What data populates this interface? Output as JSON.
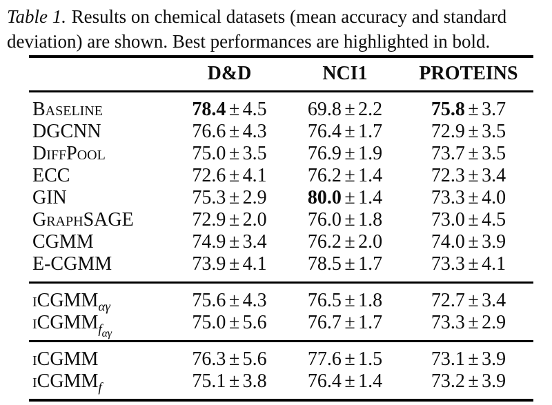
{
  "caption": {
    "label": "Table 1.",
    "line1": "Results on chemical datasets (mean accuracy and standard",
    "line2": "deviation) are shown. Best performances are highlighted in bold."
  },
  "table": {
    "pm": "±",
    "columns": [
      "",
      "D&D",
      "NCI1",
      "PROTEINS"
    ],
    "groups": [
      {
        "rows": [
          {
            "model": {
              "name": "Baseline",
              "sub": "",
              "subsub": ""
            },
            "cells": [
              {
                "mean": "78.4",
                "std": "4.5",
                "bold": true
              },
              {
                "mean": "69.8",
                "std": "2.2",
                "bold": false
              },
              {
                "mean": "75.8",
                "std": "3.7",
                "bold": true
              }
            ]
          },
          {
            "model": {
              "name": "DGCNN",
              "sub": "",
              "subsub": ""
            },
            "cells": [
              {
                "mean": "76.6",
                "std": "4.3",
                "bold": false
              },
              {
                "mean": "76.4",
                "std": "1.7",
                "bold": false
              },
              {
                "mean": "72.9",
                "std": "3.5",
                "bold": false
              }
            ]
          },
          {
            "model": {
              "name": "DiffPool",
              "sub": "",
              "subsub": ""
            },
            "cells": [
              {
                "mean": "75.0",
                "std": "3.5",
                "bold": false
              },
              {
                "mean": "76.9",
                "std": "1.9",
                "bold": false
              },
              {
                "mean": "73.7",
                "std": "3.5",
                "bold": false
              }
            ]
          },
          {
            "model": {
              "name": "ECC",
              "sub": "",
              "subsub": ""
            },
            "cells": [
              {
                "mean": "72.6",
                "std": "4.1",
                "bold": false
              },
              {
                "mean": "76.2",
                "std": "1.4",
                "bold": false
              },
              {
                "mean": "72.3",
                "std": "3.4",
                "bold": false
              }
            ]
          },
          {
            "model": {
              "name": "GIN",
              "sub": "",
              "subsub": ""
            },
            "cells": [
              {
                "mean": "75.3",
                "std": "2.9",
                "bold": false
              },
              {
                "mean": "80.0",
                "std": "1.4",
                "bold": true
              },
              {
                "mean": "73.3",
                "std": "4.0",
                "bold": false
              }
            ]
          },
          {
            "model": {
              "name": "GraphSAGE",
              "sub": "",
              "subsub": ""
            },
            "cells": [
              {
                "mean": "72.9",
                "std": "2.0",
                "bold": false
              },
              {
                "mean": "76.0",
                "std": "1.8",
                "bold": false
              },
              {
                "mean": "73.0",
                "std": "4.5",
                "bold": false
              }
            ]
          },
          {
            "model": {
              "name": "CGMM",
              "sub": "",
              "subsub": ""
            },
            "cells": [
              {
                "mean": "74.9",
                "std": "3.4",
                "bold": false
              },
              {
                "mean": "76.2",
                "std": "2.0",
                "bold": false
              },
              {
                "mean": "74.0",
                "std": "3.9",
                "bold": false
              }
            ]
          },
          {
            "model": {
              "name": "E-CGMM",
              "sub": "",
              "subsub": ""
            },
            "cells": [
              {
                "mean": "73.9",
                "std": "4.1",
                "bold": false
              },
              {
                "mean": "78.5",
                "std": "1.7",
                "bold": false
              },
              {
                "mean": "73.3",
                "std": "4.1",
                "bold": false
              }
            ]
          }
        ]
      },
      {
        "rows": [
          {
            "model": {
              "name": "iCGMM",
              "sub": "αγ",
              "subsub": ""
            },
            "cells": [
              {
                "mean": "75.6",
                "std": "4.3",
                "bold": false
              },
              {
                "mean": "76.5",
                "std": "1.8",
                "bold": false
              },
              {
                "mean": "72.7",
                "std": "3.4",
                "bold": false
              }
            ]
          },
          {
            "model": {
              "name": "iCGMM",
              "sub": "f",
              "subsub": "αγ"
            },
            "cells": [
              {
                "mean": "75.0",
                "std": "5.6",
                "bold": false
              },
              {
                "mean": "76.7",
                "std": "1.7",
                "bold": false
              },
              {
                "mean": "73.3",
                "std": "2.9",
                "bold": false
              }
            ]
          }
        ]
      },
      {
        "rows": [
          {
            "model": {
              "name": "iCGMM",
              "sub": "",
              "subsub": ""
            },
            "cells": [
              {
                "mean": "76.3",
                "std": "5.6",
                "bold": false
              },
              {
                "mean": "77.6",
                "std": "1.5",
                "bold": false
              },
              {
                "mean": "73.1",
                "std": "3.9",
                "bold": false
              }
            ]
          },
          {
            "model": {
              "name": "iCGMM",
              "sub": "f",
              "subsub": ""
            },
            "cells": [
              {
                "mean": "75.1",
                "std": "3.8",
                "bold": false
              },
              {
                "mean": "76.4",
                "std": "1.4",
                "bold": false
              },
              {
                "mean": "73.2",
                "std": "3.9",
                "bold": false
              }
            ]
          }
        ]
      }
    ]
  }
}
